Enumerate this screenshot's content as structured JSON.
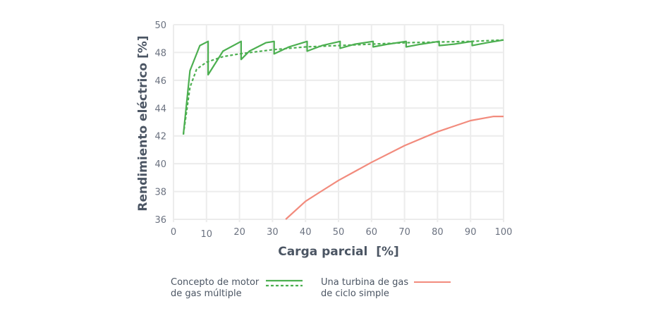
{
  "chart_data": {
    "type": "line",
    "title": "",
    "xlabel": "Carga parcial  [%]",
    "ylabel": "Rendimiento eléctrico [%]",
    "xlim": [
      0,
      100
    ],
    "ylim": [
      36,
      50
    ],
    "xticks": [
      0,
      10,
      20,
      30,
      40,
      50,
      60,
      70,
      80,
      90,
      100
    ],
    "yticks": [
      36,
      38,
      40,
      42,
      44,
      46,
      48,
      50
    ],
    "grid": true,
    "legend_position": "bottom",
    "series": [
      {
        "name": "Concepto de motor de gas múltiple (solid)",
        "style": "solid",
        "color": "#4caf50",
        "x": [
          3,
          5,
          8,
          10.5,
          10.5,
          15,
          20.5,
          20.5,
          23,
          28,
          30.5,
          30.5,
          35,
          40.5,
          40.5,
          45,
          50.5,
          50.5,
          55,
          60.5,
          60.5,
          65,
          70.5,
          70.5,
          75,
          80.5,
          80.5,
          85,
          90.5,
          90.5,
          95,
          100
        ],
        "y": [
          42.1,
          46.7,
          48.5,
          48.8,
          46.4,
          48.1,
          48.8,
          47.5,
          48.1,
          48.7,
          48.8,
          47.9,
          48.4,
          48.8,
          48.1,
          48.5,
          48.8,
          48.3,
          48.6,
          48.8,
          48.4,
          48.6,
          48.8,
          48.4,
          48.6,
          48.8,
          48.5,
          48.6,
          48.8,
          48.5,
          48.7,
          48.9
        ]
      },
      {
        "name": "Concepto de motor de gas múltiple (dotted)",
        "style": "dotted",
        "color": "#4caf50",
        "x": [
          3,
          5,
          7,
          10,
          15,
          20,
          30,
          40,
          50,
          60,
          70,
          80,
          90,
          100
        ],
        "y": [
          42.1,
          45.5,
          46.8,
          47.3,
          47.7,
          47.9,
          48.2,
          48.4,
          48.5,
          48.6,
          48.7,
          48.75,
          48.8,
          48.9
        ]
      },
      {
        "name": "Una turbina de gas de ciclo simple",
        "style": "solid",
        "color": "#f28b7d",
        "x": [
          34,
          40,
          44,
          50,
          60,
          70,
          80,
          90,
          97,
          100
        ],
        "y": [
          36,
          37.3,
          37.9,
          38.8,
          40.1,
          41.3,
          42.3,
          43.1,
          43.4,
          43.4
        ]
      }
    ]
  },
  "legend": {
    "item1": {
      "line1": "Concepto de motor",
      "line2": "de gas múltiple"
    },
    "item2": {
      "line1": "Una turbina de gas",
      "line2": "de ciclo simple"
    }
  }
}
